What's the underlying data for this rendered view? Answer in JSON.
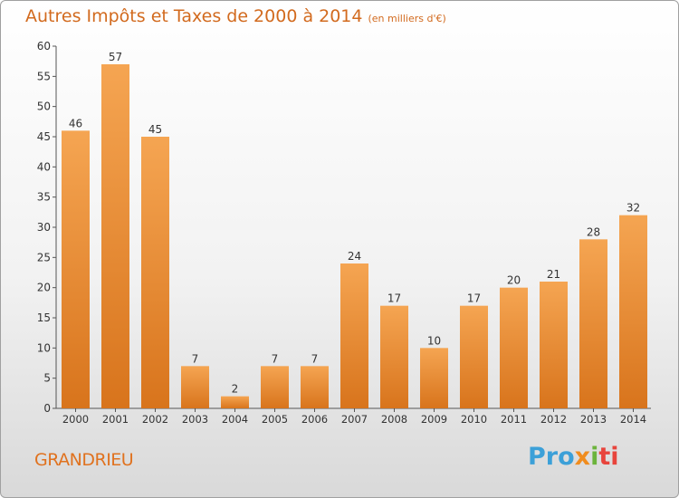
{
  "title": "Autres Impôts et Taxes de 2000 à 2014",
  "unit": "(en milliers d'€)",
  "place": "GRANDRIEU",
  "logo": {
    "p1": "Pro",
    "p2": "x",
    "p3": "i",
    "p4": "ti"
  },
  "colors": {
    "bar_light": "#f5a552",
    "bar_dark": "#d8741c",
    "title": "#d26a1e"
  },
  "chart_data": {
    "type": "bar",
    "title": "Autres Impôts et Taxes de 2000 à 2014",
    "xlabel": "",
    "ylabel": "",
    "ylim": [
      0,
      60
    ],
    "yticks": [
      0,
      5,
      10,
      15,
      20,
      25,
      30,
      35,
      40,
      45,
      50,
      55,
      60
    ],
    "grid": false,
    "categories": [
      "2000",
      "2001",
      "2002",
      "2003",
      "2004",
      "2005",
      "2006",
      "2007",
      "2008",
      "2009",
      "2010",
      "2011",
      "2012",
      "2013",
      "2014"
    ],
    "values": [
      46,
      57,
      45,
      7,
      2,
      7,
      7,
      24,
      17,
      10,
      17,
      20,
      21,
      28,
      32
    ]
  }
}
